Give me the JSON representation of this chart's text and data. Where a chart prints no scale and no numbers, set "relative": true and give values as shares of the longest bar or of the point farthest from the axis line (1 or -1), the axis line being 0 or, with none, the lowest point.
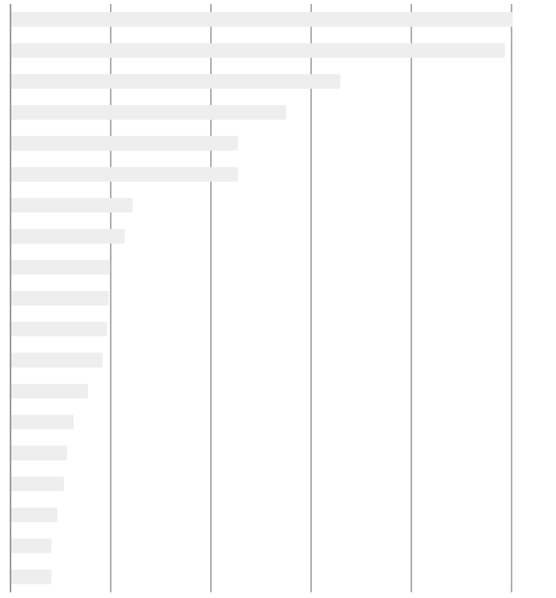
{
  "chart_data": {
    "type": "bar",
    "orientation": "horizontal",
    "relative": true,
    "grid": "x",
    "color": "#eeeeee",
    "categories": [
      null,
      null,
      null,
      null,
      null,
      null,
      null,
      null,
      null,
      null,
      null,
      null,
      null,
      null,
      null,
      null,
      null,
      null,
      null
    ],
    "values": [
      1,
      0.984,
      0.656,
      0.548,
      0.452,
      0.452,
      0.242,
      0.226,
      0.197,
      0.194,
      0.191,
      0.182,
      0.153,
      0.124,
      0.111,
      0.105,
      0.092,
      0.08,
      0.08
    ]
  }
}
